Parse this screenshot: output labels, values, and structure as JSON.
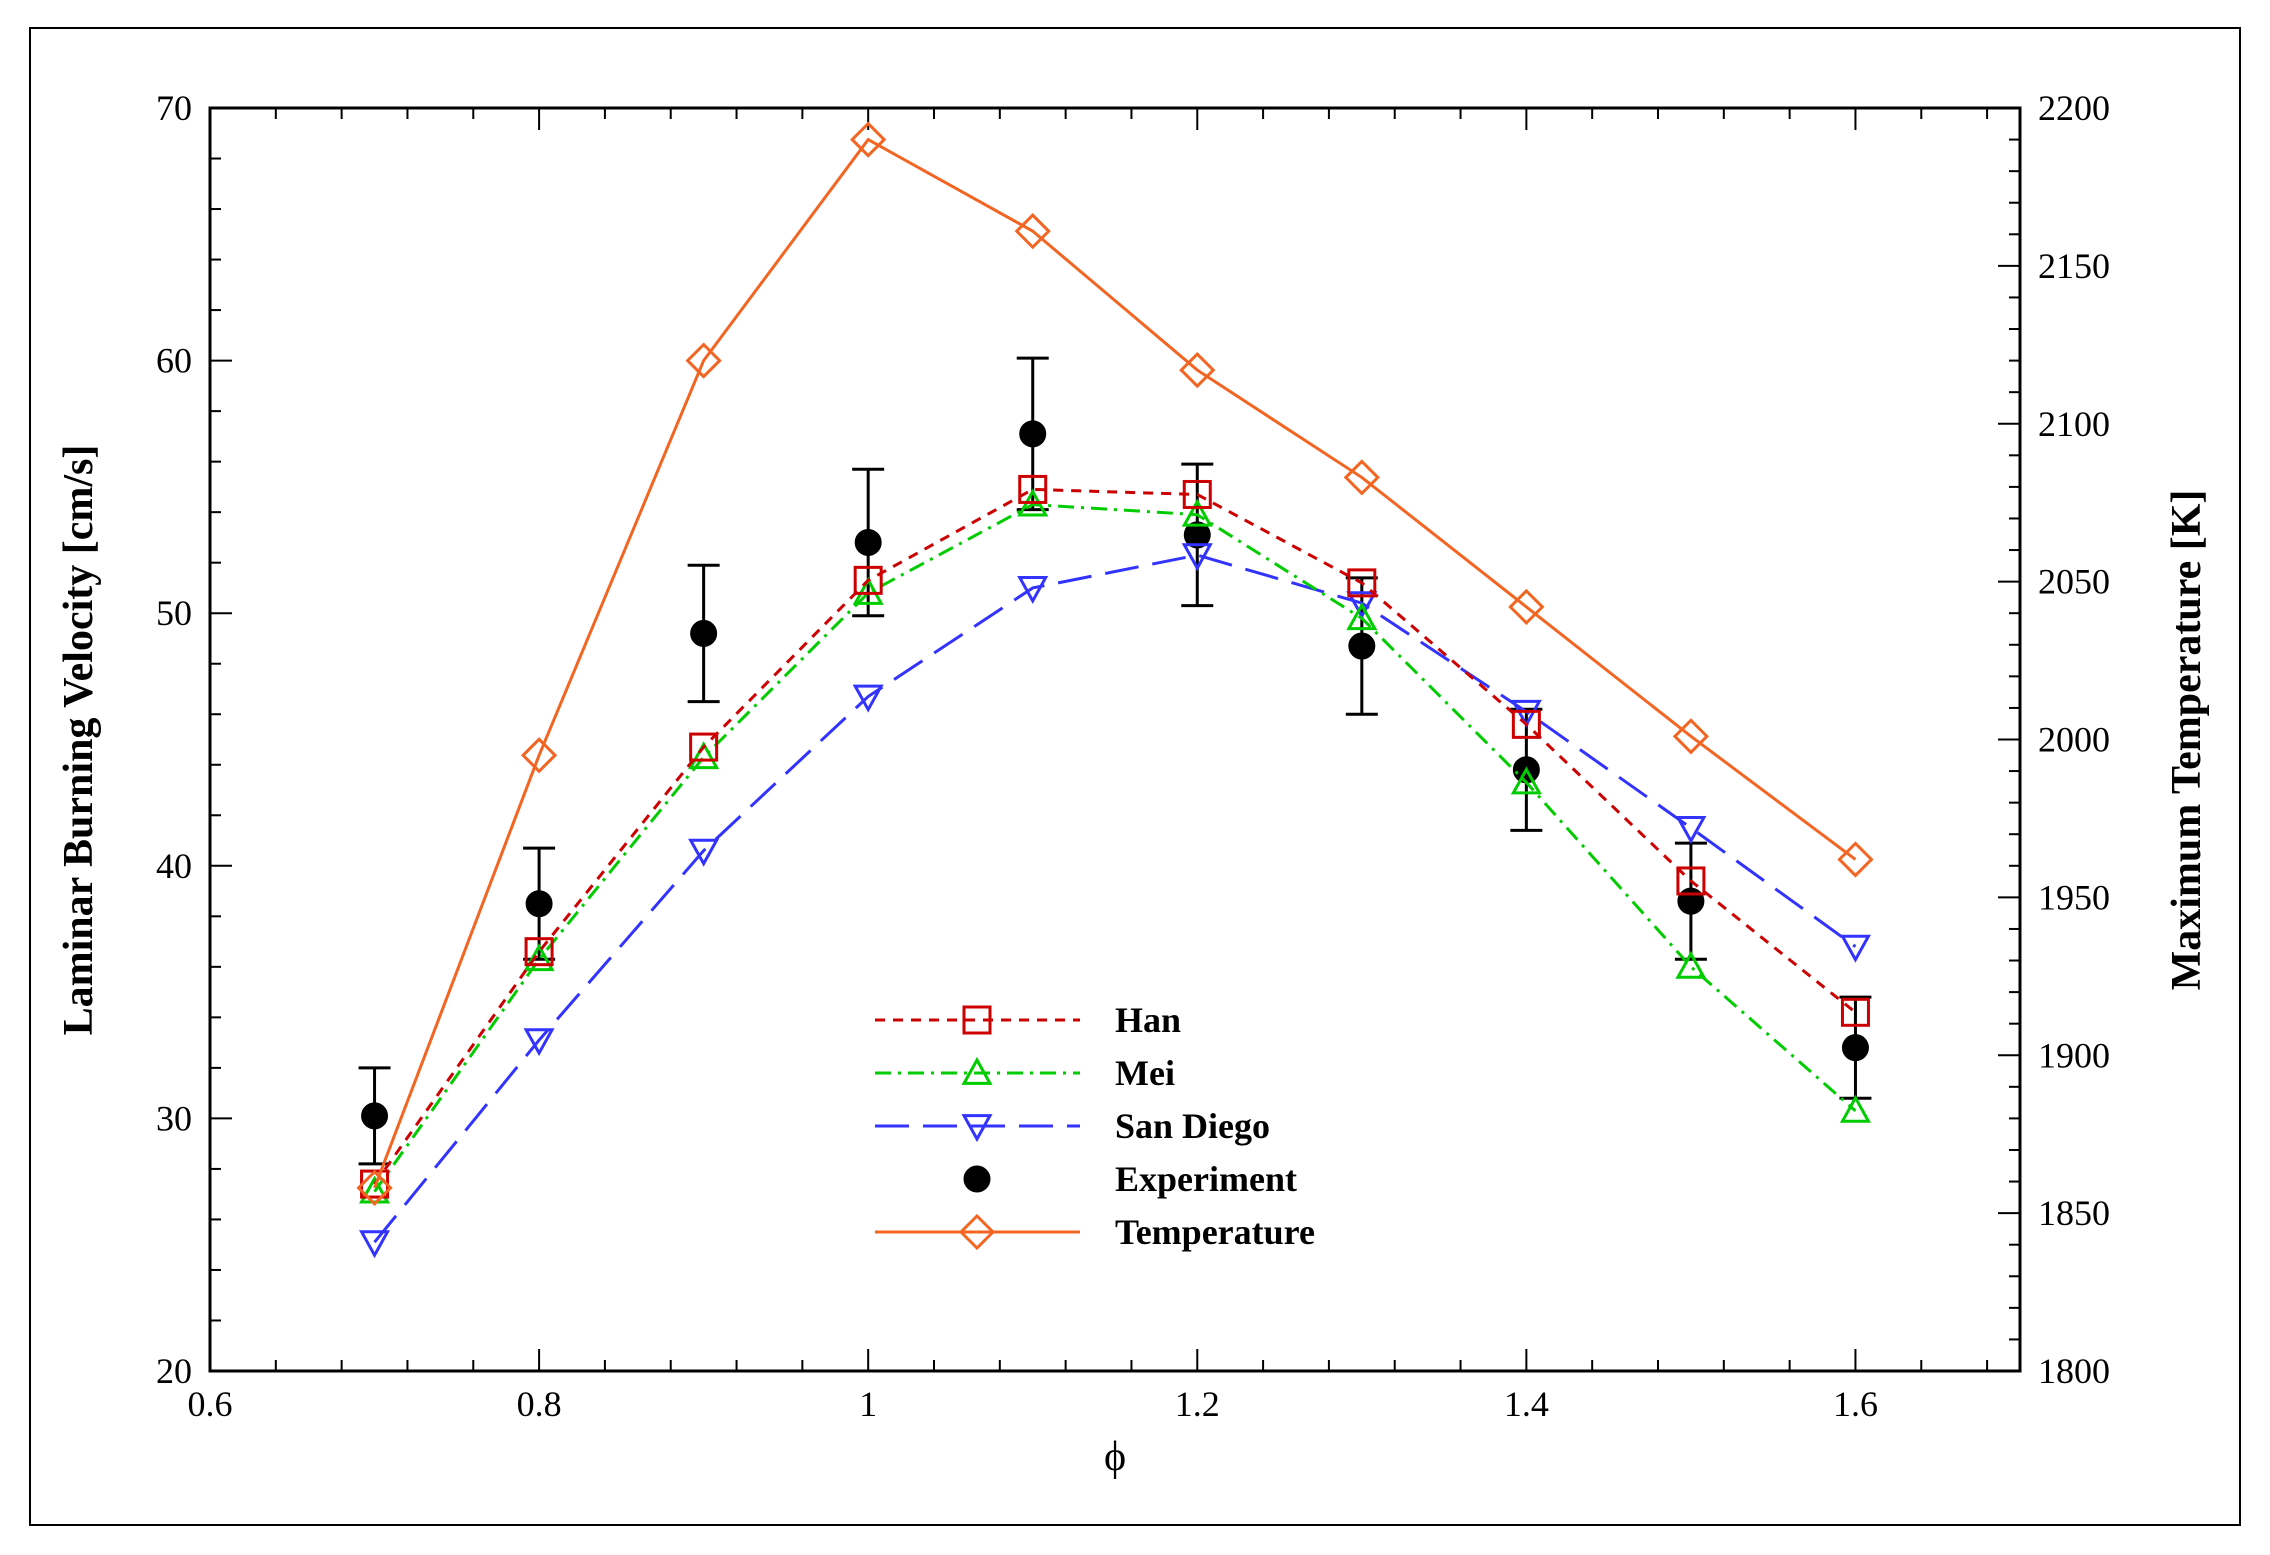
{
  "chart_data": {
    "type": "line",
    "title": "",
    "xlabel": "ϕ",
    "ylabel_left": "Laminar Burning Velocity [cm/s]",
    "ylabel_right": "Maximum Temperature [K]",
    "xlim": [
      0.6,
      1.7
    ],
    "ylim_left": [
      20,
      70
    ],
    "ylim_right": [
      1800,
      2200
    ],
    "x_ticks": [
      0.6,
      0.8,
      1.0,
      1.2,
      1.4,
      1.6
    ],
    "x_tick_labels": [
      "0.6",
      "0.8",
      "1",
      "1.2",
      "1.4",
      "1.6"
    ],
    "y_left_ticks": [
      20,
      30,
      40,
      50,
      60,
      70
    ],
    "y_left_tick_labels": [
      "20",
      "30",
      "40",
      "50",
      "60",
      "70"
    ],
    "y_right_ticks": [
      1800,
      1850,
      1900,
      1950,
      2000,
      2050,
      2100,
      2150,
      2200
    ],
    "y_right_tick_labels": [
      "1800",
      "1850",
      "1900",
      "1950",
      "2000",
      "2050",
      "2100",
      "2150",
      "2200"
    ],
    "grid": false,
    "legend_position": "center-bottom",
    "x": [
      0.7,
      0.8,
      0.9,
      1.0,
      1.1,
      1.2,
      1.3,
      1.4,
      1.5,
      1.6
    ],
    "series": [
      {
        "name": "Han",
        "axis": "left",
        "color": "#cc0000",
        "marker": "square",
        "dash": "dashed",
        "values": [
          27.4,
          36.6,
          44.7,
          51.3,
          54.9,
          54.7,
          51.2,
          45.6,
          39.4,
          34.2
        ]
      },
      {
        "name": "Mei",
        "axis": "left",
        "color": "#00cc00",
        "marker": "triangle-up",
        "dash": "dashdot",
        "values": [
          27.1,
          36.3,
          44.3,
          50.8,
          54.3,
          53.9,
          49.8,
          43.3,
          36.0,
          30.3
        ]
      },
      {
        "name": "San Diego",
        "axis": "left",
        "color": "#3333ff",
        "marker": "triangle-down",
        "dash": "longdash",
        "values": [
          25.1,
          33.1,
          40.6,
          46.7,
          51.0,
          52.3,
          50.4,
          46.1,
          41.5,
          36.8
        ]
      },
      {
        "name": "Experiment",
        "axis": "left",
        "color": "#000000",
        "marker": "circle",
        "dash": "none",
        "values": [
          30.1,
          38.5,
          49.2,
          52.8,
          57.1,
          53.1,
          48.7,
          43.8,
          38.6,
          32.8
        ],
        "error": [
          1.9,
          2.2,
          2.7,
          2.9,
          3.0,
          2.8,
          2.7,
          2.4,
          2.3,
          2.0
        ]
      },
      {
        "name": "Temperature",
        "axis": "right",
        "color": "#f26522",
        "marker": "diamond",
        "dash": "solid",
        "values": [
          1858,
          1995,
          2120,
          2190,
          2161,
          2117,
          2083,
          2042,
          2001,
          1962
        ]
      }
    ]
  }
}
